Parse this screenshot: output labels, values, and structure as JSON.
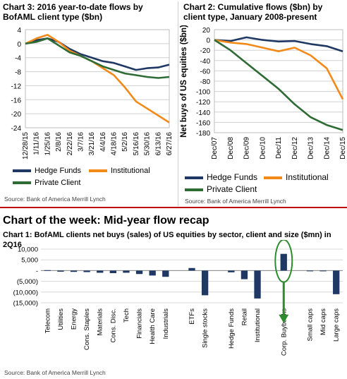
{
  "left_panel": {
    "title": "Chart 3: 2016 year-to-date flows by BofAML client type ($bn)",
    "source": "Source: Bank of America Merrill Lynch"
  },
  "right_panel": {
    "title": "Chart 2: Cumulative flows ($bn) by client type, January 2008-present",
    "source": "Source: Bank of America Merrill Lynch"
  },
  "header": {
    "title": "Chart of the week: Mid-year flow recap"
  },
  "bottom_panel": {
    "title": "Chart 1: BofAML clients net buys (sales) of US equities by sector, client and size ($mn) in 2Q16",
    "source": "Source: Bank of America Merrill Lynch"
  },
  "legend_left": [
    "Hedge Funds",
    "Institutional",
    "Private Client"
  ],
  "legend_right": [
    "Hedge Funds",
    "Institutional",
    "Private Client"
  ],
  "colors": {
    "hedge_funds": "#1f3864",
    "institutional": "#f28a1a",
    "private_client": "#2e6b35",
    "bar": "#1f3864",
    "divider": "#c00000",
    "highlight": "#2e8b2e"
  },
  "chart_data": [
    {
      "type": "line",
      "title": "Chart 3: 2016 year-to-date flows by BofAML client type ($bn)",
      "x": [
        "12/28/15",
        "1/11/16",
        "1/25/16",
        "2/8/16",
        "2/22/16",
        "3/7/16",
        "3/21/16",
        "4/4/16",
        "4/18/16",
        "5/2/16",
        "5/16/16",
        "5/30/16",
        "6/13/16",
        "6/27/16"
      ],
      "ylim": [
        -24,
        4
      ],
      "yticks": [
        4,
        0,
        -4,
        -8,
        -12,
        -16,
        -20,
        -24
      ],
      "grid": true,
      "series": [
        {
          "name": "Hedge Funds",
          "values": [
            0,
            1.0,
            1.5,
            0.5,
            -1.5,
            -3,
            -4,
            -5,
            -5.5,
            -6.5,
            -7.5,
            -7,
            -6.8,
            -6
          ]
        },
        {
          "name": "Institutional",
          "values": [
            0,
            1.5,
            2.5,
            0.5,
            -2,
            -3.5,
            -5,
            -7,
            -9,
            -12.5,
            -16.5,
            -18.5,
            -20.5,
            -22.5
          ]
        },
        {
          "name": "Private Client",
          "values": [
            0,
            0.5,
            1.5,
            -0.5,
            -2.5,
            -3.5,
            -5,
            -6.5,
            -7.5,
            -8.5,
            -9,
            -9.5,
            -9.8,
            -9.5
          ]
        }
      ]
    },
    {
      "type": "line",
      "title": "Chart 2: Cumulative flows ($bn) by client type, January 2008-present",
      "ylabel": "Net buys of US equities ($bn)",
      "x": [
        "Dec/07",
        "Dec/08",
        "Dec/09",
        "Dec/10",
        "Dec/11",
        "Dec/12",
        "Dec/13",
        "Dec/14",
        "Dec/15"
      ],
      "ylim": [
        -180,
        20
      ],
      "yticks": [
        20,
        0,
        -20,
        -40,
        -60,
        -80,
        -100,
        -120,
        -140,
        -160,
        -180
      ],
      "grid": true,
      "series": [
        {
          "name": "Hedge Funds",
          "values": [
            0,
            -2,
            5,
            0,
            -3,
            -2,
            -8,
            -12,
            -22
          ]
        },
        {
          "name": "Institutional",
          "values": [
            0,
            -5,
            -8,
            -15,
            -22,
            -15,
            -30,
            -55,
            -115
          ]
        },
        {
          "name": "Private Client",
          "values": [
            0,
            -20,
            -45,
            -70,
            -95,
            -125,
            -150,
            -165,
            -175
          ]
        }
      ]
    },
    {
      "type": "bar",
      "title": "Chart 1: BofAML clients net buys (sales) of US equities by sector, client and size ($mn) in 2Q16",
      "categories": [
        "Telecom",
        "Utilities",
        "Energy",
        "Cons. Staples",
        "Materials",
        "Cons. Disc.",
        "Tech",
        "Financials",
        "Health Care",
        "Industrials",
        "",
        "ETFs",
        "Single stocks",
        "",
        "Hedge Funds",
        "Retail",
        "Institutional",
        "",
        "Corp. Buybacks",
        "",
        "Small caps",
        "Mid caps",
        "Large caps"
      ],
      "values": [
        200,
        -500,
        -600,
        -700,
        -1000,
        -1200,
        -1000,
        -1600,
        -2300,
        -2900,
        null,
        1200,
        -11500,
        null,
        -800,
        -4000,
        -13000,
        null,
        7800,
        null,
        -100,
        -300,
        -11000
      ],
      "ylim": [
        -15000,
        10000
      ],
      "yticks": [
        10000,
        5000,
        0,
        -5000,
        -10000,
        -15000
      ],
      "ytick_labels": [
        "10,000",
        "5,000",
        "-",
        "(5,000)",
        "(10,000)",
        "(15,000)"
      ],
      "grid": true
    }
  ]
}
